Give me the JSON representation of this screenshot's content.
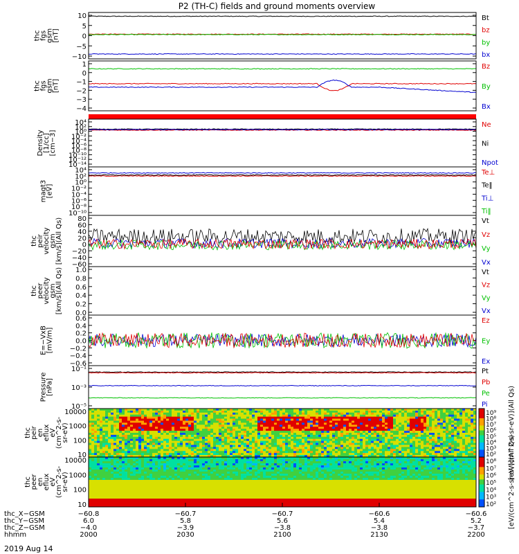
{
  "title": "P2 (TH-C) fields and ground moments overview",
  "date_label": "2019 Aug 14",
  "panels": [
    {
      "id": "fgs",
      "ylabel": [
        "thc",
        "fgs",
        "gsm",
        "[nT]"
      ],
      "ticks": [
        "10",
        "5",
        "0",
        "−5",
        "−10"
      ],
      "legend": [
        {
          "text": "Bt",
          "color": "#000000"
        },
        {
          "text": "bz",
          "color": "#e00000"
        },
        {
          "text": "by",
          "color": "#00c000"
        },
        {
          "text": "bx",
          "color": "#0000d0"
        }
      ],
      "series": [
        {
          "name": "Bt",
          "color": "#000000",
          "level": 9.2
        },
        {
          "name": "bz",
          "color": "#e00000",
          "level": 0.7
        },
        {
          "name": "by",
          "color": "#00c000",
          "level": 0.5
        },
        {
          "name": "bx",
          "color": "#0000d0",
          "level": -8.7
        }
      ],
      "range": [
        -11,
        11
      ]
    },
    {
      "id": "fgl",
      "ylabel": [
        "thc",
        "fgs",
        "gsm",
        "[nT]"
      ],
      "ticks": [
        "1",
        "0",
        "−1",
        "−2",
        "−3",
        "−4"
      ],
      "legend": [
        {
          "text": "Bz",
          "color": "#e00000"
        },
        {
          "text": "By",
          "color": "#00c000"
        },
        {
          "text": "Bx",
          "color": "#0000d0"
        }
      ],
      "series": [
        {
          "name": "By",
          "color": "#00c000",
          "level": 0.3
        },
        {
          "name": "Bz",
          "color": "#e00000",
          "level": -1.4
        },
        {
          "name": "Bx",
          "color": "#0000d0",
          "level": -1.8
        }
      ],
      "range": [
        -4.5,
        1.2
      ]
    },
    {
      "id": "density",
      "ylabel": [
        "Density",
        "[1/cc]",
        "[cm−3]"
      ],
      "ticks": [
        "10⁴",
        "10²",
        "10⁰",
        "10⁻²",
        "10⁻⁴",
        "10⁻⁶",
        "10⁻⁸",
        "10⁻¹⁰",
        "10⁻¹²",
        "10⁻¹⁴"
      ],
      "legend": [
        {
          "text": "Ne",
          "color": "#e00000"
        },
        {
          "text": "Ni",
          "color": "#000000"
        },
        {
          "text": "Npot",
          "color": "#0000d0"
        }
      ],
      "series": [
        {
          "name": "Ne",
          "color": "#e00000",
          "level": 0.4
        },
        {
          "name": "Ni",
          "color": "#000000",
          "level": 0.8
        },
        {
          "name": "Npot",
          "color": "#0000d0",
          "level": 0.6
        }
      ],
      "range": [
        -15,
        5
      ]
    },
    {
      "id": "temp",
      "ylabel": [
        "magt3",
        "[eV]"
      ],
      "ticks": [
        "10⁴",
        "10²",
        "10⁰",
        "10⁻²",
        "10⁻⁴",
        "10⁻⁶",
        "10⁻⁸",
        "10⁻¹⁰"
      ],
      "legend": [
        {
          "text": "Te⊥",
          "color": "#e00000"
        },
        {
          "text": "Te‖",
          "color": "#000000"
        },
        {
          "text": "Ti⊥",
          "color": "#0000d0"
        },
        {
          "text": "Ti‖",
          "color": "#00c000"
        }
      ],
      "series": [
        {
          "name": "Ti",
          "color": "#0000d0",
          "level": 3
        },
        {
          "name": "Te",
          "color": "#e00000",
          "level": 2
        },
        {
          "name": "Te2",
          "color": "#000000",
          "level": 2.3
        }
      ],
      "range": [
        -11,
        5
      ]
    },
    {
      "id": "peir",
      "ylabel": [
        "thc",
        "peir",
        "velocity",
        "gsm",
        "[km/s](All Qs)"
      ],
      "ticks": [
        "80",
        "60",
        "40",
        "20",
        "0",
        "−20",
        "−40",
        "−60"
      ],
      "legend": [
        {
          "text": "Vt",
          "color": "#000000"
        },
        {
          "text": "Vz",
          "color": "#e00000"
        },
        {
          "text": "Vy",
          "color": "#00c000"
        },
        {
          "text": "Vx",
          "color": "#0000d0"
        }
      ],
      "series": [
        {
          "name": "Vt",
          "color": "#000000",
          "level": 25,
          "noise": 22
        },
        {
          "name": "Vx",
          "color": "#0000d0",
          "level": 5,
          "noise": 14
        },
        {
          "name": "Vy",
          "color": "#00c000",
          "level": 0,
          "noise": 14
        },
        {
          "name": "Vz",
          "color": "#e00000",
          "level": 3,
          "noise": 14
        }
      ],
      "range": [
        -62,
        85
      ]
    },
    {
      "id": "peer",
      "ylabel": [
        "thc",
        "peer",
        "velocity",
        "gsm",
        "[km/s](All Qs)"
      ],
      "ticks": [
        "1.0",
        "0.8",
        "0.6",
        "0.4",
        "0.2",
        "0.0"
      ],
      "legend": [
        {
          "text": "Vt",
          "color": "#000000"
        },
        {
          "text": "Vz",
          "color": "#e00000"
        },
        {
          "text": "Vy",
          "color": "#00c000"
        },
        {
          "text": "Vx",
          "color": "#0000d0"
        }
      ],
      "series": [],
      "range": [
        0,
        1
      ]
    },
    {
      "id": "efield",
      "ylabel": [
        "E=−VxB",
        "[mV/m]"
      ],
      "ticks": [
        "0.6",
        "0.4",
        "0.2",
        "0.0",
        "−0.2",
        "−0.4",
        "−0.6"
      ],
      "legend": [
        {
          "text": "Ez",
          "color": "#e00000"
        },
        {
          "text": "Ey",
          "color": "#00c000"
        },
        {
          "text": "Ex",
          "color": "#0000d0"
        }
      ],
      "series": [
        {
          "name": "Ex",
          "color": "#0000d0",
          "level": 0.0,
          "noise": 0.18
        },
        {
          "name": "Ey",
          "color": "#00c000",
          "level": 0.0,
          "noise": 0.22
        },
        {
          "name": "Ez",
          "color": "#e00000",
          "level": 0.0,
          "noise": 0.2
        }
      ],
      "range": [
        -0.7,
        0.7
      ]
    },
    {
      "id": "pressure",
      "ylabel": [
        "Pressure",
        "[nPa]"
      ],
      "ticks": [
        "10⁻¹",
        "10⁻³",
        "10⁻⁵"
      ],
      "legend": [
        {
          "text": "Pt",
          "color": "#000000"
        },
        {
          "text": "Pb",
          "color": "#e00000"
        },
        {
          "text": "Pe",
          "color": "#00c000"
        },
        {
          "text": "Pi",
          "color": "#0000d0"
        }
      ],
      "series": [
        {
          "name": "Pt",
          "color": "#000000",
          "level": -0.9
        },
        {
          "name": "Pb",
          "color": "#e00000",
          "level": -1.0
        },
        {
          "name": "Pi",
          "color": "#0000d0",
          "level": -2.8
        },
        {
          "name": "Pe",
          "color": "#00c000",
          "level": -4.5
        }
      ],
      "range": [
        -6,
        0
      ]
    },
    {
      "id": "peir_spec",
      "ylabel": [
        "thc",
        "peir",
        "en",
        "eflux",
        "eV",
        "(cm^2-s-",
        "sr-eV)"
      ],
      "ticks": [
        "10000",
        "1000",
        "100",
        "10"
      ],
      "colorbar_ticks": [
        "10⁹",
        "10⁸",
        "10⁷",
        "10⁶",
        "10⁵",
        "10⁴",
        "10³",
        "10²"
      ],
      "colorbar_label": "[eV/(cm^2-s-sr-eV)](All Qs)"
    },
    {
      "id": "peer_spec",
      "ylabel": [
        "thc",
        "peer",
        "en",
        "eflux",
        "eV",
        "(cm^2-s-",
        "sr-eV)"
      ],
      "ticks": [
        "10000",
        "1000",
        "100",
        "10"
      ],
      "colorbar_ticks": [
        "10⁸",
        "10⁷",
        "10⁶",
        "10⁵",
        "10⁴",
        "10³",
        "10²"
      ],
      "colorbar_label": "[eV/(cm^2-s-sr-eV)](All Qs)"
    }
  ],
  "axis_rows": [
    {
      "label": "thc_X−GSM",
      "values": [
        "−60.8",
        "−60.7",
        "−60.7",
        "−60.6",
        "−60.6"
      ]
    },
    {
      "label": "thc_Y−GSM",
      "values": [
        "6.0",
        "5.8",
        "5.6",
        "5.4",
        "5.2"
      ]
    },
    {
      "label": "thc_Z−GSM",
      "values": [
        "−4.0",
        "−3.9",
        "−3.8",
        "−3.8",
        "−3.7"
      ]
    },
    {
      "label": "hhmm",
      "values": [
        "2000",
        "2030",
        "2100",
        "2130",
        "2200"
      ]
    }
  ],
  "chart_data": {
    "type": "line",
    "title": "P2 (TH-C) fields and ground moments overview",
    "x": [
      "2000",
      "2030",
      "2100",
      "2130",
      "2200"
    ],
    "xlabel": "hhmm",
    "date": "2019 Aug 14",
    "series": [
      {
        "name": "Bt",
        "values": [
          9,
          9,
          9,
          8,
          9
        ]
      },
      {
        "name": "bz",
        "values": [
          1,
          1,
          1,
          1,
          1
        ]
      },
      {
        "name": "by",
        "values": [
          0.5,
          0.5,
          0.5,
          0.5,
          0.5
        ]
      },
      {
        "name": "bx",
        "values": [
          -9,
          -9,
          -9,
          -8,
          -9
        ]
      }
    ]
  }
}
